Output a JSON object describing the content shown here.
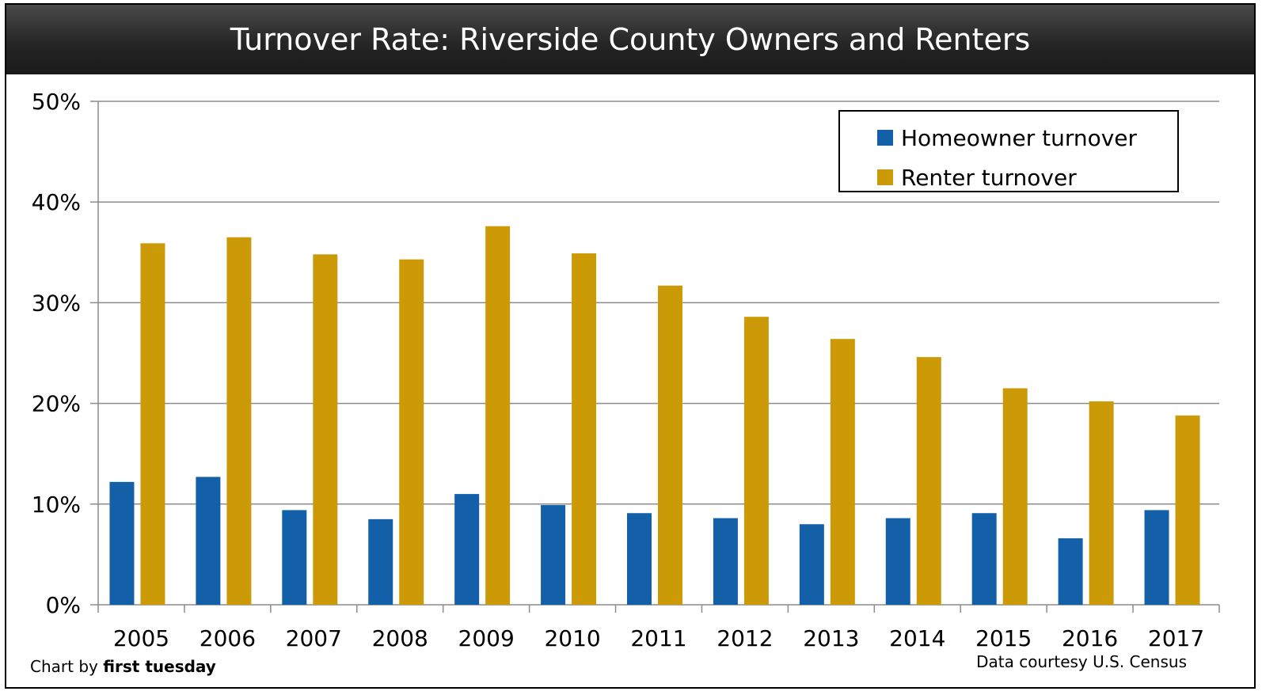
{
  "chart_data": {
    "type": "bar",
    "title": "Turnover Rate: Riverside County Owners and Renters",
    "categories": [
      "2005",
      "2006",
      "2007",
      "2008",
      "2009",
      "2010",
      "2011",
      "2012",
      "2013",
      "2014",
      "2015",
      "2016",
      "2017"
    ],
    "series": [
      {
        "name": "Homeowner turnover",
        "color": "#1460A8",
        "values": [
          12.2,
          12.7,
          9.4,
          8.5,
          11.0,
          9.9,
          9.1,
          8.6,
          8.0,
          8.6,
          9.1,
          6.6,
          9.4
        ]
      },
      {
        "name": "Renter turnover",
        "color": "#CC9A06",
        "values": [
          35.9,
          36.5,
          34.8,
          34.3,
          37.6,
          34.9,
          31.7,
          28.6,
          26.4,
          24.6,
          21.5,
          20.2,
          18.8
        ]
      }
    ],
    "ylim": [
      0,
      50
    ],
    "yticks": [
      "0%",
      "10%",
      "20%",
      "30%",
      "40%",
      "50%"
    ],
    "grid": true,
    "legend_position": "top-right"
  },
  "credits": {
    "left_prefix": "Chart by ",
    "left_bold": "first tuesday",
    "right": "Data courtesy U.S. Census"
  }
}
